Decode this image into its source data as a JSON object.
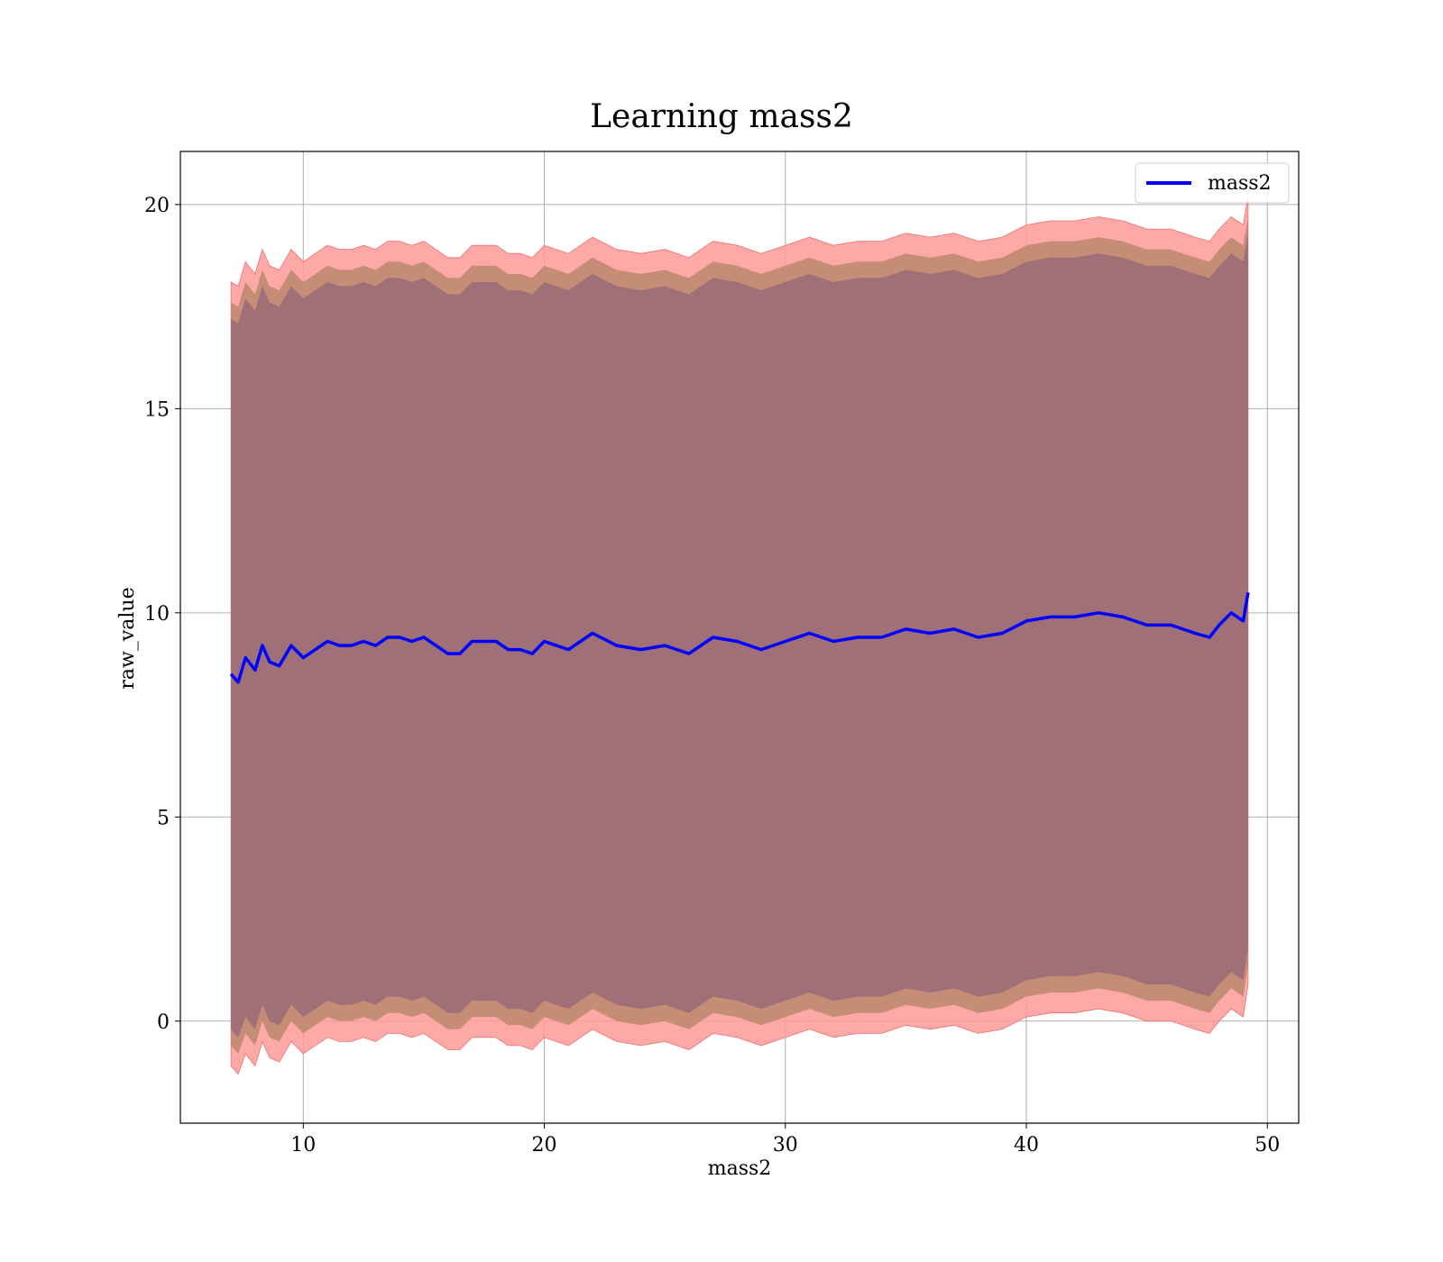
{
  "chart_data": {
    "type": "line",
    "title": "Learning mass2",
    "xlabel": "mass2",
    "ylabel": "raw_value",
    "xlim": [
      4.9,
      51.3
    ],
    "ylim": [
      -2.5,
      21.3
    ],
    "x_ticks": [
      10,
      20,
      30,
      40,
      50
    ],
    "y_ticks": [
      0,
      5,
      10,
      15,
      20
    ],
    "x_tick_labels": [
      "10",
      "20",
      "30",
      "40",
      "50"
    ],
    "y_tick_labels": [
      "0",
      "5",
      "10",
      "15",
      "20"
    ],
    "grid": true,
    "legend": {
      "placement": "upper-right",
      "entries": [
        "mass2"
      ]
    },
    "colors": {
      "line": "#0000ff",
      "band_outer": "#ff9999",
      "band_inner": "#c08a70",
      "band_core": "#a07078"
    },
    "series": [
      {
        "name": "mass2",
        "x": [
          7.0,
          7.3,
          7.6,
          8.0,
          8.3,
          8.6,
          9.0,
          9.5,
          10.0,
          10.5,
          11.0,
          11.5,
          12.0,
          12.5,
          13.0,
          13.5,
          14.0,
          14.5,
          15.0,
          15.5,
          16.0,
          16.5,
          17.0,
          17.5,
          18.0,
          18.5,
          19.0,
          19.5,
          20.0,
          21.0,
          22.0,
          23.0,
          24.0,
          25.0,
          26.0,
          27.0,
          28.0,
          29.0,
          30.0,
          31.0,
          32.0,
          33.0,
          34.0,
          35.0,
          36.0,
          37.0,
          38.0,
          39.0,
          40.0,
          41.0,
          42.0,
          43.0,
          44.0,
          45.0,
          46.0,
          47.0,
          47.6,
          48.0,
          48.5,
          49.0,
          49.2
        ],
        "y": [
          8.5,
          8.3,
          8.9,
          8.6,
          9.2,
          8.8,
          8.7,
          9.2,
          8.9,
          9.1,
          9.3,
          9.2,
          9.2,
          9.3,
          9.2,
          9.4,
          9.4,
          9.3,
          9.4,
          9.2,
          9.0,
          9.0,
          9.3,
          9.3,
          9.3,
          9.1,
          9.1,
          9.0,
          9.3,
          9.1,
          9.5,
          9.2,
          9.1,
          9.2,
          9.0,
          9.4,
          9.3,
          9.1,
          9.3,
          9.5,
          9.3,
          9.4,
          9.4,
          9.6,
          9.5,
          9.6,
          9.4,
          9.5,
          9.8,
          9.9,
          9.9,
          10.0,
          9.9,
          9.7,
          9.7,
          9.5,
          9.4,
          9.7,
          10.0,
          9.8,
          10.5
        ]
      }
    ],
    "bands": [
      {
        "x": [
          7.0,
          7.3,
          7.6,
          8.0,
          8.3,
          8.6,
          9.0,
          9.5,
          10.0,
          10.5,
          11.0,
          11.5,
          12.0,
          12.5,
          13.0,
          13.5,
          14.0,
          14.5,
          15.0,
          15.5,
          16.0,
          16.5,
          17.0,
          17.5,
          18.0,
          18.5,
          19.0,
          19.5,
          20.0,
          21.0,
          22.0,
          23.0,
          24.0,
          25.0,
          26.0,
          27.0,
          28.0,
          29.0,
          30.0,
          31.0,
          32.0,
          33.0,
          34.0,
          35.0,
          36.0,
          37.0,
          38.0,
          39.0,
          40.0,
          41.0,
          42.0,
          43.0,
          44.0,
          45.0,
          46.0,
          47.0,
          47.6,
          48.0,
          48.5,
          49.0,
          49.2
        ],
        "outer_upper": [
          18.1,
          18.0,
          18.6,
          18.3,
          18.9,
          18.5,
          18.4,
          18.9,
          18.6,
          18.8,
          19.0,
          18.9,
          18.9,
          19.0,
          18.9,
          19.1,
          19.1,
          19.0,
          19.1,
          18.9,
          18.7,
          18.7,
          19.0,
          19.0,
          19.0,
          18.8,
          18.8,
          18.7,
          19.0,
          18.8,
          19.2,
          18.9,
          18.8,
          18.9,
          18.7,
          19.1,
          19.0,
          18.8,
          19.0,
          19.2,
          19.0,
          19.1,
          19.1,
          19.3,
          19.2,
          19.3,
          19.1,
          19.2,
          19.5,
          19.6,
          19.6,
          19.7,
          19.6,
          19.4,
          19.4,
          19.2,
          19.1,
          19.4,
          19.7,
          19.5,
          20.2
        ],
        "outer_lower": [
          -1.1,
          -1.3,
          -0.8,
          -1.1,
          -0.5,
          -0.9,
          -1.0,
          -0.5,
          -0.8,
          -0.6,
          -0.4,
          -0.5,
          -0.5,
          -0.4,
          -0.5,
          -0.3,
          -0.3,
          -0.4,
          -0.3,
          -0.5,
          -0.7,
          -0.7,
          -0.4,
          -0.4,
          -0.4,
          -0.6,
          -0.6,
          -0.7,
          -0.4,
          -0.6,
          -0.2,
          -0.5,
          -0.6,
          -0.5,
          -0.7,
          -0.3,
          -0.4,
          -0.6,
          -0.4,
          -0.2,
          -0.4,
          -0.3,
          -0.3,
          -0.1,
          -0.2,
          -0.1,
          -0.3,
          -0.2,
          0.1,
          0.2,
          0.2,
          0.3,
          0.2,
          0.0,
          0.0,
          -0.2,
          -0.3,
          0.0,
          0.3,
          0.1,
          0.9
        ],
        "inner_upper": [
          17.6,
          17.5,
          18.1,
          17.8,
          18.4,
          18.0,
          17.9,
          18.4,
          18.1,
          18.3,
          18.5,
          18.4,
          18.4,
          18.5,
          18.4,
          18.6,
          18.6,
          18.5,
          18.6,
          18.4,
          18.2,
          18.2,
          18.5,
          18.5,
          18.5,
          18.3,
          18.3,
          18.2,
          18.5,
          18.3,
          18.7,
          18.4,
          18.3,
          18.4,
          18.2,
          18.6,
          18.5,
          18.3,
          18.5,
          18.7,
          18.5,
          18.6,
          18.6,
          18.8,
          18.7,
          18.8,
          18.6,
          18.7,
          19.0,
          19.1,
          19.1,
          19.2,
          19.1,
          18.9,
          18.9,
          18.7,
          18.6,
          18.9,
          19.2,
          19.0,
          19.7
        ],
        "inner_lower": [
          -0.6,
          -0.8,
          -0.3,
          -0.6,
          0.0,
          -0.4,
          -0.5,
          0.0,
          -0.3,
          -0.1,
          0.1,
          0.0,
          0.0,
          0.1,
          0.0,
          0.2,
          0.2,
          0.1,
          0.2,
          0.0,
          -0.2,
          -0.2,
          0.1,
          0.1,
          0.1,
          -0.1,
          -0.1,
          -0.2,
          0.1,
          -0.1,
          0.3,
          0.0,
          -0.1,
          0.0,
          -0.2,
          0.2,
          0.1,
          -0.1,
          0.1,
          0.3,
          0.1,
          0.2,
          0.2,
          0.4,
          0.3,
          0.4,
          0.2,
          0.3,
          0.6,
          0.7,
          0.7,
          0.8,
          0.7,
          0.5,
          0.5,
          0.3,
          0.2,
          0.5,
          0.8,
          0.6,
          1.4
        ],
        "core_upper": [
          17.2,
          17.1,
          17.7,
          17.4,
          18.0,
          17.6,
          17.5,
          18.0,
          17.7,
          17.9,
          18.1,
          18.0,
          18.0,
          18.1,
          18.0,
          18.2,
          18.2,
          18.1,
          18.2,
          18.0,
          17.8,
          17.8,
          18.1,
          18.1,
          18.1,
          17.9,
          17.9,
          17.8,
          18.1,
          17.9,
          18.3,
          18.0,
          17.9,
          18.0,
          17.8,
          18.2,
          18.1,
          17.9,
          18.1,
          18.3,
          18.1,
          18.2,
          18.2,
          18.4,
          18.3,
          18.4,
          18.2,
          18.3,
          18.6,
          18.7,
          18.7,
          18.8,
          18.7,
          18.5,
          18.5,
          18.3,
          18.2,
          18.5,
          18.8,
          18.6,
          19.3
        ],
        "core_lower": [
          -0.2,
          -0.4,
          0.1,
          -0.2,
          0.4,
          0.0,
          -0.1,
          0.4,
          0.1,
          0.3,
          0.5,
          0.4,
          0.4,
          0.5,
          0.4,
          0.6,
          0.6,
          0.5,
          0.6,
          0.4,
          0.2,
          0.2,
          0.5,
          0.5,
          0.5,
          0.3,
          0.3,
          0.2,
          0.5,
          0.3,
          0.7,
          0.4,
          0.3,
          0.4,
          0.2,
          0.6,
          0.5,
          0.3,
          0.5,
          0.7,
          0.5,
          0.6,
          0.6,
          0.8,
          0.7,
          0.8,
          0.6,
          0.7,
          1.0,
          1.1,
          1.1,
          1.2,
          1.1,
          0.9,
          0.9,
          0.7,
          0.6,
          0.9,
          1.2,
          1.0,
          1.8
        ]
      }
    ]
  }
}
